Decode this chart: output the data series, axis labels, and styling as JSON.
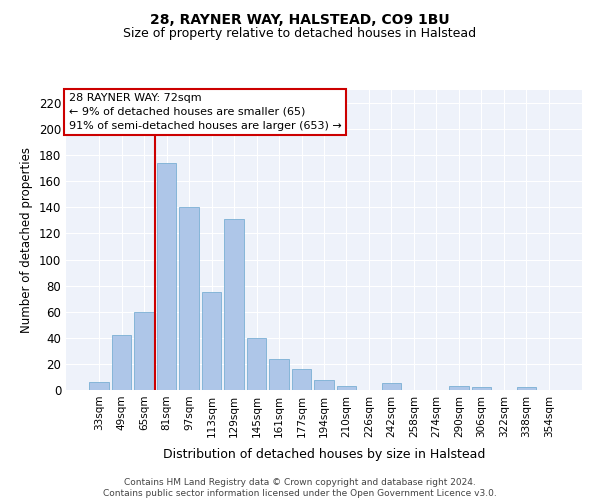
{
  "title": "28, RAYNER WAY, HALSTEAD, CO9 1BU",
  "subtitle": "Size of property relative to detached houses in Halstead",
  "xlabel": "Distribution of detached houses by size in Halstead",
  "ylabel": "Number of detached properties",
  "categories": [
    "33sqm",
    "49sqm",
    "65sqm",
    "81sqm",
    "97sqm",
    "113sqm",
    "129sqm",
    "145sqm",
    "161sqm",
    "177sqm",
    "194sqm",
    "210sqm",
    "226sqm",
    "242sqm",
    "258sqm",
    "274sqm",
    "290sqm",
    "306sqm",
    "322sqm",
    "338sqm",
    "354sqm"
  ],
  "values": [
    6,
    42,
    60,
    174,
    140,
    75,
    131,
    40,
    24,
    16,
    8,
    3,
    0,
    5,
    0,
    0,
    3,
    2,
    0,
    2,
    0
  ],
  "bar_color": "#aec6e8",
  "bar_edge_color": "#7aafd4",
  "background_color": "#eef2fa",
  "grid_color": "#ffffff",
  "vline_color": "#cc0000",
  "annotation_text": "28 RAYNER WAY: 72sqm\n← 9% of detached houses are smaller (65)\n91% of semi-detached houses are larger (653) →",
  "annotation_box_color": "#cc0000",
  "ylim": [
    0,
    230
  ],
  "yticks": [
    0,
    20,
    40,
    60,
    80,
    100,
    120,
    140,
    160,
    180,
    200,
    220
  ],
  "footer_line1": "Contains HM Land Registry data © Crown copyright and database right 2024.",
  "footer_line2": "Contains public sector information licensed under the Open Government Licence v3.0."
}
